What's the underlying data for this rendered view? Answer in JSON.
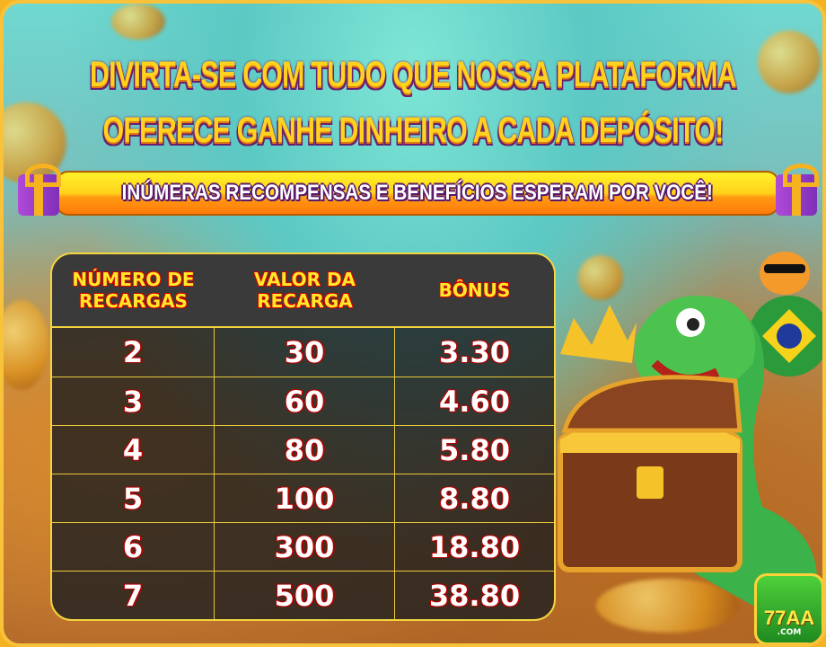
{
  "headline": {
    "line1": "DIVIRTA-SE COM TUDO QUE NOSSA PLATAFORMA",
    "line2": "OFERECE GANHE DINHEIRO A CADA DEPÓSITO!"
  },
  "ribbon": {
    "text": "INÚMERAS RECOMPENSAS E BENEFÍCIOS ESPERAM POR VOCÊ!"
  },
  "table": {
    "headers": [
      "NÚMERO DE RECARGAS",
      "VALOR DA RECARGA",
      "BÔNUS"
    ],
    "rows": [
      [
        "2",
        "30",
        "3.30"
      ],
      [
        "3",
        "60",
        "4.60"
      ],
      [
        "4",
        "80",
        "5.80"
      ],
      [
        "5",
        "100",
        "8.80"
      ],
      [
        "6",
        "300",
        "18.80"
      ],
      [
        "7",
        "500",
        "38.80"
      ]
    ]
  },
  "logo": {
    "name": "77AA",
    "suffix": ".COM"
  },
  "colors": {
    "title_yellow": "#ffd21f",
    "title_outline": "#6b1f6e",
    "table_border": "#f4d540",
    "header_text": "#ffe92a",
    "cell_outline": "#b50000"
  }
}
